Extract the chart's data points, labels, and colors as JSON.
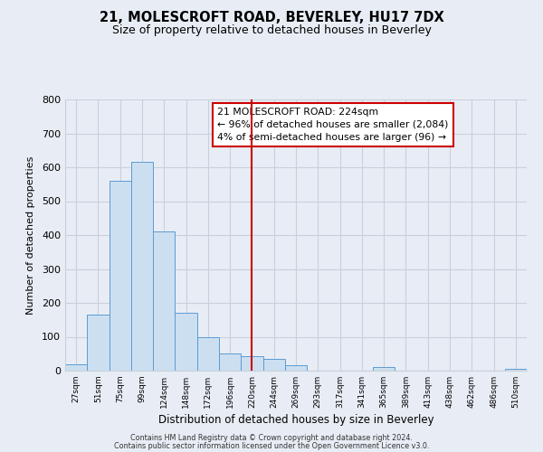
{
  "title": "21, MOLESCROFT ROAD, BEVERLEY, HU17 7DX",
  "subtitle": "Size of property relative to detached houses in Beverley",
  "xlabel": "Distribution of detached houses by size in Beverley",
  "ylabel": "Number of detached properties",
  "bar_labels": [
    "27sqm",
    "51sqm",
    "75sqm",
    "99sqm",
    "124sqm",
    "148sqm",
    "172sqm",
    "196sqm",
    "220sqm",
    "244sqm",
    "269sqm",
    "293sqm",
    "317sqm",
    "341sqm",
    "365sqm",
    "389sqm",
    "413sqm",
    "438sqm",
    "462sqm",
    "486sqm",
    "510sqm"
  ],
  "bar_values": [
    20,
    165,
    560,
    615,
    410,
    170,
    100,
    50,
    42,
    35,
    15,
    0,
    0,
    0,
    10,
    0,
    0,
    0,
    0,
    0,
    5
  ],
  "bar_color": "#ccdff0",
  "bar_edge_color": "#5b9bd5",
  "vline_x": 8,
  "vline_color": "#cc0000",
  "ylim": [
    0,
    800
  ],
  "yticks": [
    0,
    100,
    200,
    300,
    400,
    500,
    600,
    700,
    800
  ],
  "annotation_title": "21 MOLESCROFT ROAD: 224sqm",
  "annotation_line1": "← 96% of detached houses are smaller (2,084)",
  "annotation_line2": "4% of semi-detached houses are larger (96) →",
  "footer1": "Contains HM Land Registry data © Crown copyright and database right 2024.",
  "footer2": "Contains public sector information licensed under the Open Government Licence v3.0.",
  "background_color": "#e8edf5",
  "plot_bg_color": "#e8edf5",
  "grid_color": "#c8d0dc"
}
